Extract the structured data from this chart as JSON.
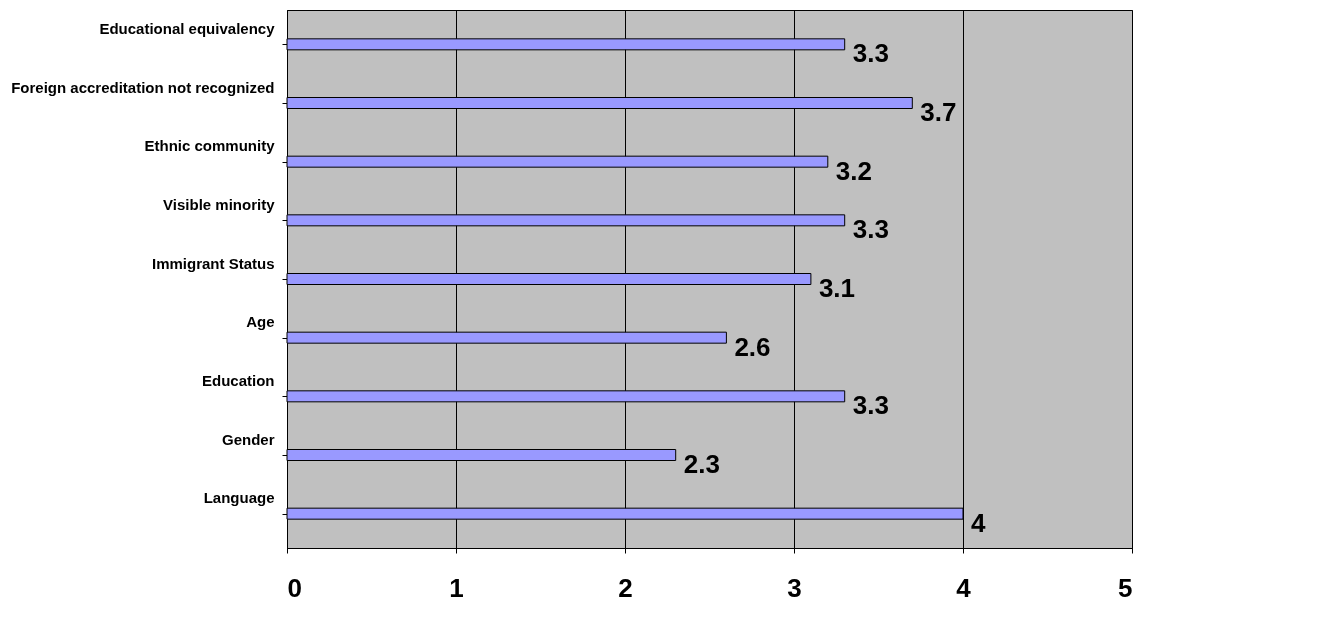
{
  "chart_data": {
    "type": "bar",
    "orientation": "horizontal",
    "categories": [
      "Educational equivalency",
      "Foreign accreditation not recognized",
      "Ethnic community",
      "Visible minority",
      "Immigrant Status",
      "Age",
      "Education",
      "Gender",
      "Language"
    ],
    "values": [
      3.3,
      3.7,
      3.2,
      3.3,
      3.1,
      2.6,
      3.3,
      2.3,
      4
    ],
    "color": "#9999ff",
    "xlim": [
      0,
      5
    ],
    "xticks": [
      0,
      1,
      2,
      3,
      4,
      5
    ],
    "grid": "x",
    "data_labels": true
  }
}
